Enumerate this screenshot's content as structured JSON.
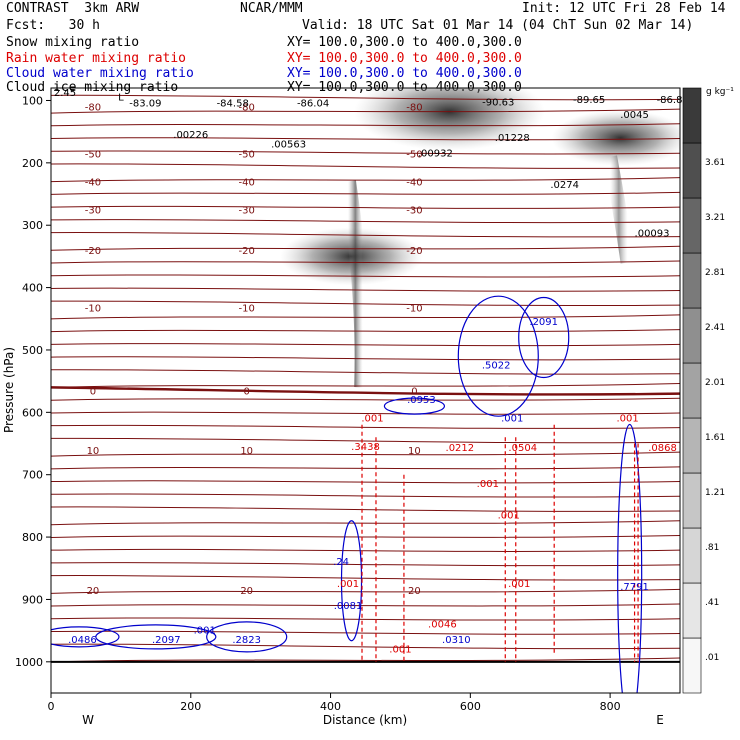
{
  "header": {
    "model": "CONTRAST  3km ARW",
    "org": "NCAR/MMM",
    "init": "Init: 12 UTC Fri 28 Feb 14",
    "fcst": "Fcst:   30 h",
    "valid": "Valid: 18 UTC Sat 01 Mar 14 (04 ChT Sun 02 Mar 14)"
  },
  "legend": [
    {
      "label": "Snow mixing ratio",
      "xy": "XY= 100.0,300.0 to 400.0,300.0",
      "color": "#000000"
    },
    {
      "label": "Rain water mixing ratio",
      "xy": "XY= 100.0,300.0 to 400.0,300.0",
      "color": "#dd0000"
    },
    {
      "label": "Cloud water mixing ratio",
      "xy": "XY= 100.0,300.0 to 400.0,300.0",
      "color": "#0000cc"
    },
    {
      "label": "Cloud ice mixing ratio",
      "xy": "XY= 100.0,300.0 to 400.0,300.0",
      "color": "#000000"
    }
  ],
  "chart_data": {
    "type": "cross-section",
    "xlabel": "Distance (km)",
    "ylabel": "Pressure (hPa)",
    "xlim": [
      0,
      900
    ],
    "ylim": [
      1050,
      80
    ],
    "xticks": [
      "0",
      "200",
      "400",
      "600",
      "800"
    ],
    "xtick_values": [
      0,
      200,
      400,
      600,
      800
    ],
    "yticks": [
      "100",
      "200",
      "300",
      "400",
      "500",
      "600",
      "700",
      "800",
      "900",
      "1000"
    ],
    "ytick_values": [
      100,
      200,
      300,
      400,
      500,
      600,
      700,
      800,
      900,
      1000
    ],
    "west_label": "W",
    "east_label": "E",
    "colorbar": {
      "unit": "g kg⁻¹",
      "levels": [
        ".01",
        ".41",
        ".81",
        "1.21",
        "1.61",
        "2.01",
        "2.41",
        "2.81",
        "3.21",
        "3.61"
      ],
      "colors": [
        "#f7f7f7",
        "#e6e6e6",
        "#d6d6d6",
        "#c6c6c6",
        "#b5b5b5",
        "#a3a3a3",
        "#8f8f8f",
        "#7a7a7a",
        "#666666",
        "#4f4f4f",
        "#3a3a3a"
      ]
    },
    "temperature_contours": [
      {
        "label": "-80",
        "p": 110
      },
      {
        "label": "-50",
        "p": 185
      },
      {
        "label": "-40",
        "p": 230
      },
      {
        "label": "-30",
        "p": 275
      },
      {
        "label": "-20",
        "p": 340
      },
      {
        "label": "-10",
        "p": 432
      },
      {
        "label": "0",
        "p": 565
      },
      {
        "label": "10",
        "p": 660
      },
      {
        "label": "20",
        "p": 885
      }
    ],
    "snow_maxima": [
      {
        "x": 570,
        "p": 118,
        "value": 4.2
      },
      {
        "x": 430,
        "p": 350,
        "value": 2.2
      },
      {
        "x": 815,
        "p": 160,
        "value": 2.0
      }
    ],
    "annotations": [
      {
        "text": "L",
        "x": 100,
        "p": 100,
        "color": "black"
      },
      {
        "text": "-83.09",
        "x": 135,
        "p": 110,
        "color": "black"
      },
      {
        "text": "-84.58",
        "x": 260,
        "p": 110,
        "color": "black"
      },
      {
        "text": "-86.04",
        "x": 375,
        "p": 110,
        "color": "black"
      },
      {
        "text": "-90.63",
        "x": 640,
        "p": 108,
        "color": "black"
      },
      {
        "text": "-89.65",
        "x": 770,
        "p": 104,
        "color": "black"
      },
      {
        "text": "-86.8",
        "x": 885,
        "p": 104,
        "color": "black"
      },
      {
        "text": "2.45",
        "x": 20,
        "p": 93,
        "color": "black"
      },
      {
        "text": ".00226",
        "x": 200,
        "p": 160,
        "color": "black"
      },
      {
        "text": ".00563",
        "x": 340,
        "p": 175,
        "color": "black"
      },
      {
        "text": ".00932",
        "x": 550,
        "p": 190,
        "color": "black"
      },
      {
        "text": ".01228",
        "x": 660,
        "p": 165,
        "color": "black"
      },
      {
        "text": ".0045",
        "x": 835,
        "p": 128,
        "color": "black"
      },
      {
        "text": ".0274",
        "x": 735,
        "p": 240,
        "color": "black"
      },
      {
        "text": ".00093",
        "x": 860,
        "p": 318,
        "color": "black"
      },
      {
        "text": ".2091",
        "x": 705,
        "p": 460,
        "color": "#0000cc"
      },
      {
        "text": ".5022",
        "x": 637,
        "p": 530,
        "color": "#0000cc"
      },
      {
        "text": ".0953",
        "x": 530,
        "p": 585,
        "color": "#0000cc"
      },
      {
        "text": ".001",
        "x": 660,
        "p": 615,
        "color": "#0000cc"
      },
      {
        "text": ".001",
        "x": 460,
        "p": 615,
        "color": "#dd0000"
      },
      {
        "text": ".3438",
        "x": 450,
        "p": 660,
        "color": "#dd0000"
      },
      {
        "text": ".0212",
        "x": 585,
        "p": 662,
        "color": "#dd0000"
      },
      {
        "text": ".0504",
        "x": 675,
        "p": 662,
        "color": "#dd0000"
      },
      {
        "text": ".0868",
        "x": 875,
        "p": 662,
        "color": "#dd0000"
      },
      {
        "text": ".001",
        "x": 825,
        "p": 615,
        "color": "#dd0000"
      },
      {
        "text": ".001",
        "x": 625,
        "p": 720,
        "color": "#dd0000"
      },
      {
        "text": ".001",
        "x": 655,
        "p": 770,
        "color": "#dd0000"
      },
      {
        "text": ".24",
        "x": 415,
        "p": 845,
        "color": "#0000cc"
      },
      {
        "text": ".001",
        "x": 425,
        "p": 880,
        "color": "#dd0000"
      },
      {
        "text": ".001",
        "x": 670,
        "p": 880,
        "color": "#dd0000"
      },
      {
        "text": ".0081",
        "x": 425,
        "p": 915,
        "color": "#0000cc"
      },
      {
        "text": ".0046",
        "x": 560,
        "p": 945,
        "color": "#dd0000"
      },
      {
        "text": ".0310",
        "x": 580,
        "p": 970,
        "color": "#0000cc"
      },
      {
        "text": ".001",
        "x": 500,
        "p": 985,
        "color": "#dd0000"
      },
      {
        "text": ".7791",
        "x": 835,
        "p": 885,
        "color": "#0000cc"
      },
      {
        "text": ".0486",
        "x": 45,
        "p": 970,
        "color": "#0000cc"
      },
      {
        "text": ".2097",
        "x": 165,
        "p": 970,
        "color": "#0000cc"
      },
      {
        "text": ".001",
        "x": 220,
        "p": 955,
        "color": "#0000cc"
      },
      {
        "text": ".2823",
        "x": 280,
        "p": 970,
        "color": "#0000cc"
      }
    ]
  }
}
